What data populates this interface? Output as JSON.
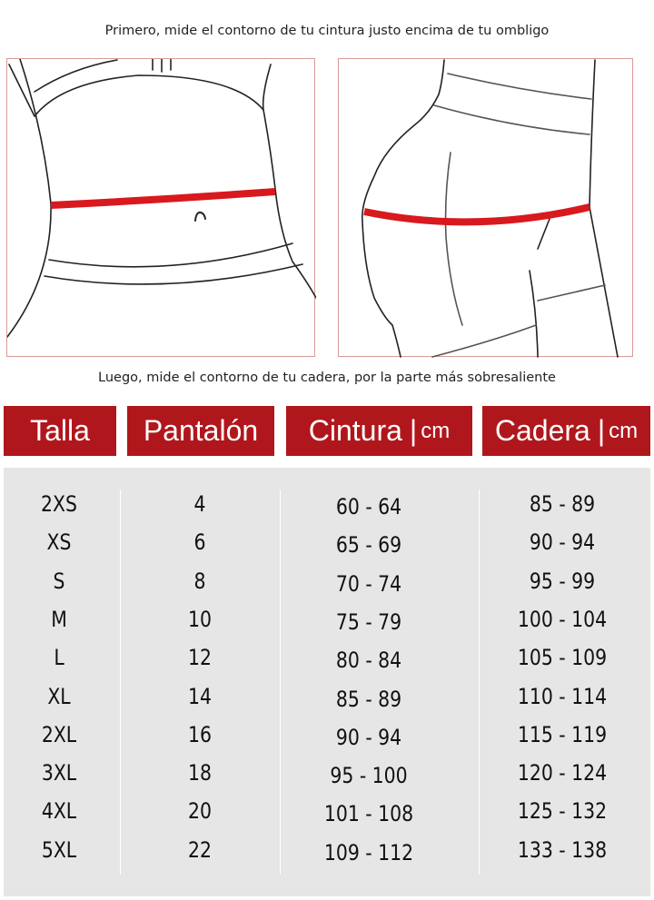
{
  "top_caption": "Primero, mide el contorno de tu cintura justo encima de tu ombligo",
  "bottom_caption": "Luego, mide el contorno de tu cadera, por la parte más sobresaliente",
  "colors": {
    "header_bg": "#b0171c",
    "measure_band": "#d8191e",
    "table_bg": "#e6e6e6"
  },
  "headers": {
    "talla": "Talla",
    "pantalon": "Pantalón",
    "cintura": "Cintura",
    "cadera": "Cadera",
    "unit": "cm"
  },
  "rows": [
    {
      "talla": "2XS",
      "pantalon": "4",
      "cintura": "60 - 64",
      "cadera": "85 - 89"
    },
    {
      "talla": "XS",
      "pantalon": "6",
      "cintura": "65 - 69",
      "cadera": "90 - 94"
    },
    {
      "talla": "S",
      "pantalon": "8",
      "cintura": "70 - 74",
      "cadera": "95 - 99"
    },
    {
      "talla": "M",
      "pantalon": "10",
      "cintura": "75 - 79",
      "cadera": "100 - 104"
    },
    {
      "talla": "L",
      "pantalon": "12",
      "cintura": "80 - 84",
      "cadera": "105 - 109"
    },
    {
      "talla": "XL",
      "pantalon": "14",
      "cintura": "85 - 89",
      "cadera": "110 - 114"
    },
    {
      "talla": "2XL",
      "pantalon": "16",
      "cintura": "90 - 94",
      "cadera": "115 - 119"
    },
    {
      "talla": "3XL",
      "pantalon": "18",
      "cintura": "95 - 100",
      "cadera": "120 - 124"
    },
    {
      "talla": "4XL",
      "pantalon": "20",
      "cintura": "101 - 108",
      "cadera": "125 - 132"
    },
    {
      "talla": "5XL",
      "pantalon": "22",
      "cintura": "109 - 112",
      "cadera": "133 - 138"
    }
  ]
}
